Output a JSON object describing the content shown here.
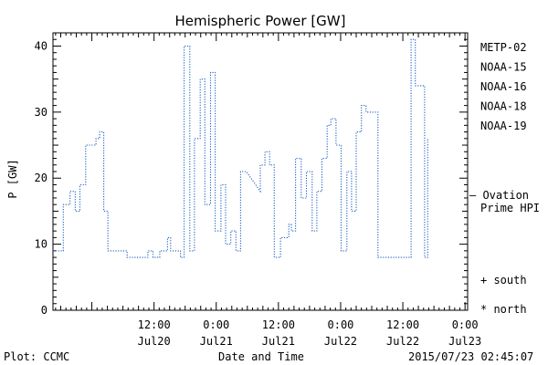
{
  "colors": {
    "metp02": "#000000",
    "noaa15": "#0033cc",
    "noaa16": "#00aadd",
    "noaa18": "#22cc66",
    "noaa19": "#ff9900",
    "ovation": "#1f5fbf",
    "hp_line": "#1f5fbf"
  },
  "chart_data": {
    "type": "line",
    "title": "Hemispheric Power [GW]",
    "xlabel": "Date and Time",
    "ylabel": "P [GW]",
    "ylim": [
      0,
      42
    ],
    "xlim_hours_from_Jul20_0000": [
      -7.5,
      72.5
    ],
    "y_ticks": [
      0,
      10,
      20,
      30,
      40
    ],
    "x_ticks": [
      {
        "hours": 12,
        "line1": "12:00",
        "line2": "Jul20"
      },
      {
        "hours": 24,
        "line1": "0:00",
        "line2": "Jul21"
      },
      {
        "hours": 36,
        "line1": "12:00",
        "line2": "Jul21"
      },
      {
        "hours": 48,
        "line1": "0:00",
        "line2": "Jul22"
      },
      {
        "hours": 60,
        "line1": "12:00",
        "line2": "Jul22"
      },
      {
        "hours": 72,
        "line1": "0:00",
        "line2": "Jul23"
      }
    ],
    "series": [
      {
        "name": "Ovation Prime HPI",
        "style": "dotted-step",
        "points": [
          [
            -7.5,
            9
          ],
          [
            -5.5,
            9
          ],
          [
            -5.5,
            16
          ],
          [
            -4.2,
            16
          ],
          [
            -4.2,
            18
          ],
          [
            -3.2,
            18
          ],
          [
            -3.2,
            15
          ],
          [
            -2.3,
            15
          ],
          [
            -2.3,
            19
          ],
          [
            -1.2,
            19
          ],
          [
            -1.2,
            25
          ],
          [
            0.8,
            25
          ],
          [
            0.8,
            26
          ],
          [
            1.5,
            26
          ],
          [
            1.5,
            27
          ],
          [
            2.3,
            27
          ],
          [
            2.3,
            15
          ],
          [
            3.1,
            15
          ],
          [
            3.1,
            9
          ],
          [
            6.8,
            9
          ],
          [
            6.8,
            8
          ],
          [
            10.8,
            8
          ],
          [
            10.8,
            9
          ],
          [
            11.8,
            9
          ],
          [
            11.8,
            8
          ],
          [
            13.1,
            8
          ],
          [
            13.1,
            9
          ],
          [
            14.6,
            9
          ],
          [
            14.6,
            11
          ],
          [
            15.2,
            11
          ],
          [
            15.2,
            9
          ],
          [
            17.1,
            9
          ],
          [
            17.1,
            8
          ],
          [
            17.8,
            8
          ],
          [
            17.8,
            40
          ],
          [
            18.9,
            40
          ],
          [
            18.9,
            9
          ],
          [
            19.8,
            9
          ],
          [
            19.8,
            26
          ],
          [
            20.9,
            26
          ],
          [
            20.9,
            35
          ],
          [
            21.8,
            35
          ],
          [
            21.8,
            16
          ],
          [
            22.9,
            16
          ],
          [
            22.9,
            36
          ],
          [
            23.8,
            36
          ],
          [
            23.8,
            12
          ],
          [
            24.9,
            12
          ],
          [
            24.9,
            19
          ],
          [
            25.8,
            19
          ],
          [
            25.8,
            10
          ],
          [
            26.8,
            10
          ],
          [
            26.8,
            12
          ],
          [
            27.8,
            12
          ],
          [
            27.8,
            9
          ],
          [
            28.7,
            9
          ],
          [
            28.7,
            21
          ],
          [
            29.8,
            21
          ],
          [
            32.5,
            18
          ],
          [
            32.5,
            22
          ],
          [
            33.4,
            22
          ],
          [
            33.4,
            24
          ],
          [
            34.3,
            24
          ],
          [
            34.3,
            22
          ],
          [
            35.2,
            22
          ],
          [
            35.2,
            8
          ],
          [
            36.4,
            8
          ],
          [
            36.4,
            11
          ],
          [
            38.0,
            11
          ],
          [
            38.0,
            13
          ],
          [
            38.5,
            13
          ],
          [
            38.5,
            12
          ],
          [
            39.3,
            12
          ],
          [
            39.3,
            23
          ],
          [
            40.4,
            23
          ],
          [
            40.4,
            17
          ],
          [
            41.4,
            17
          ],
          [
            41.4,
            21
          ],
          [
            42.5,
            21
          ],
          [
            42.5,
            12
          ],
          [
            43.4,
            12
          ],
          [
            43.4,
            18
          ],
          [
            44.4,
            18
          ],
          [
            44.4,
            23
          ],
          [
            45.4,
            23
          ],
          [
            45.4,
            28
          ],
          [
            46.1,
            28
          ],
          [
            46.1,
            29
          ],
          [
            47.1,
            29
          ],
          [
            47.1,
            25
          ],
          [
            48.1,
            25
          ],
          [
            48.1,
            9
          ],
          [
            49.2,
            9
          ],
          [
            49.2,
            21
          ],
          [
            50.1,
            21
          ],
          [
            50.1,
            15
          ],
          [
            51.0,
            15
          ],
          [
            51.0,
            27
          ],
          [
            52.0,
            27
          ],
          [
            52.0,
            31
          ],
          [
            52.9,
            31
          ],
          [
            52.9,
            30
          ],
          [
            55.2,
            30
          ],
          [
            55.2,
            8
          ],
          [
            61.6,
            8
          ],
          [
            61.6,
            41
          ],
          [
            62.4,
            41
          ],
          [
            62.4,
            34
          ],
          [
            64.2,
            34
          ],
          [
            64.2,
            8
          ],
          [
            64.8,
            8
          ],
          [
            64.8,
            26
          ]
        ]
      }
    ],
    "legend": {
      "entries": [
        {
          "label": "METP-02",
          "color_key": "metp02"
        },
        {
          "label": "NOAA-15",
          "color_key": "noaa15"
        },
        {
          "label": "NOAA-16",
          "color_key": "noaa16"
        },
        {
          "label": "NOAA-18",
          "color_key": "noaa18"
        },
        {
          "label": "NOAA-19",
          "color_key": "noaa19"
        }
      ],
      "ovation_marker_value": 17.3,
      "ovation_label_line1": "— Ovation",
      "ovation_label_line2": "Prime HPI",
      "south_label": "+ south",
      "north_label": "* north"
    }
  },
  "footer": {
    "left": "Plot: CCMC",
    "right": "2015/07/23 02:45:07"
  }
}
